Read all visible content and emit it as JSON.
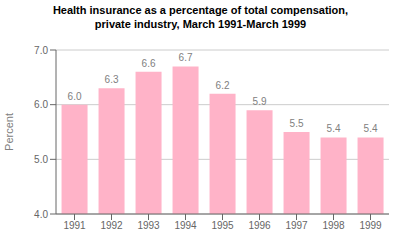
{
  "chart_data": {
    "type": "bar",
    "title": "Health insurance as a percentage of total compensation,\nprivate industry, March 1991-March 1999",
    "categories": [
      "1991",
      "1992",
      "1993",
      "1994",
      "1995",
      "1996",
      "1997",
      "1998",
      "1999"
    ],
    "values": [
      6.0,
      6.3,
      6.6,
      6.7,
      6.2,
      5.9,
      5.5,
      5.4,
      5.4
    ],
    "value_labels": [
      "6.0",
      "6.3",
      "6.6",
      "6.7",
      "6.2",
      "5.9",
      "5.5",
      "5.4",
      "5.4"
    ],
    "data_labels": true,
    "color": "#FFB3C8",
    "ylabel": "Percent",
    "ylim": [
      4.0,
      7.0
    ],
    "yticks": [
      {
        "value": 4.0,
        "label": "4.0"
      },
      {
        "value": 5.0,
        "label": "5.0"
      },
      {
        "value": 6.0,
        "label": "6.0"
      },
      {
        "value": 7.0,
        "label": "7.0"
      }
    ],
    "grid": true
  }
}
